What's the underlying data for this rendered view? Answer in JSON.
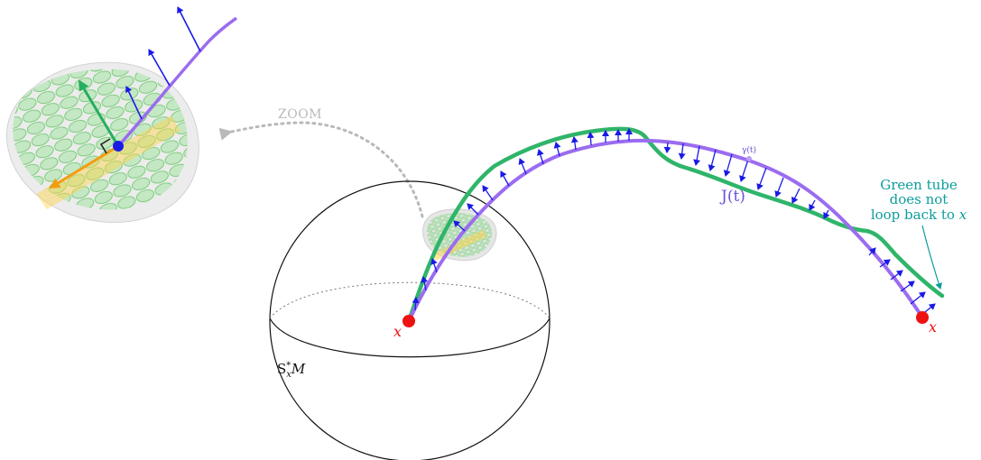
{
  "labels": {
    "zoom": "ZOOM",
    "x_left": "x",
    "x_right": "x",
    "jacobi": "J(t)",
    "gamma": "γ(t)",
    "sphere": "S*xM",
    "sphere_base": "S",
    "sphere_sup": "*",
    "sphere_sub": "x",
    "sphere_tail": "M",
    "note_line1": "Green tube",
    "note_line2": "does not",
    "note_line3": "loop back to",
    "note_var": "x"
  },
  "colors": {
    "geodesic": "#9b6cf0",
    "tube": "#2fb56a",
    "vector": "#1a1ae6",
    "point": "#ee1111",
    "zoom_arrow": "#b9b9b9",
    "note": "#0e9c9c",
    "orange_vector": "#f39c12",
    "green_vector": "#27ae60"
  }
}
